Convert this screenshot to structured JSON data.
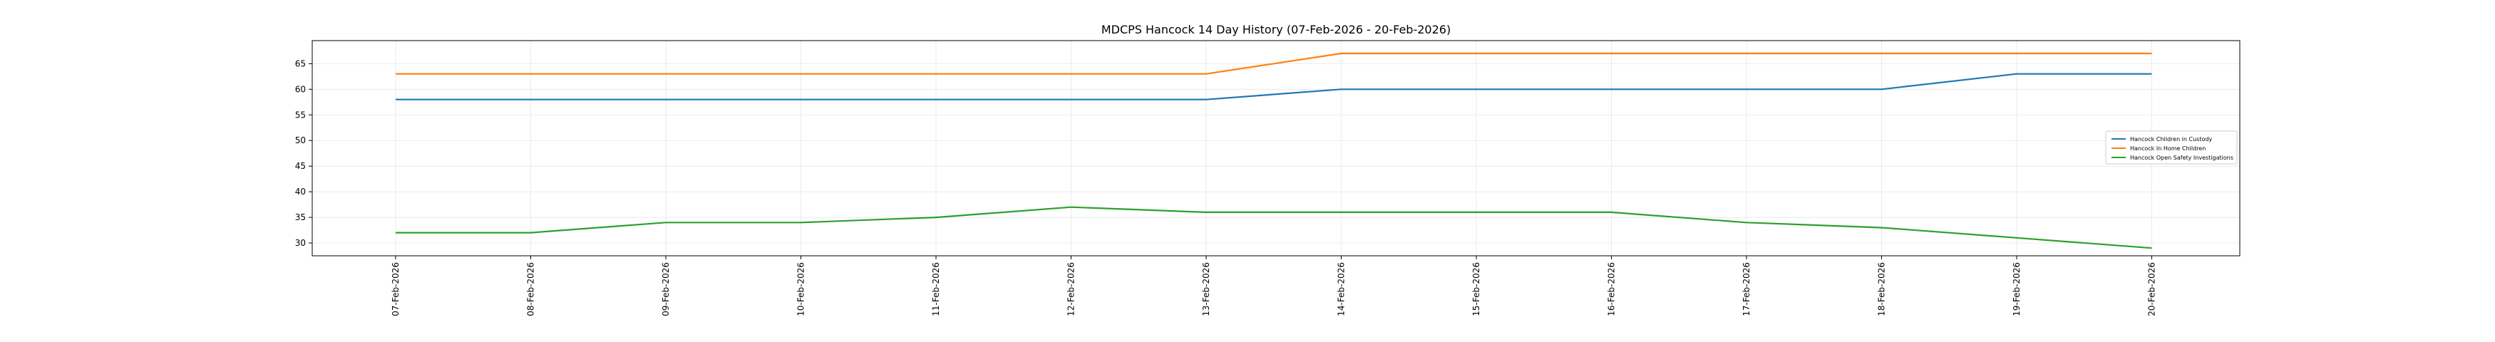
{
  "chart_data": {
    "type": "line",
    "title": "MDCPS Hancock 14 Day History (07-Feb-2026 - 20-Feb-2026)",
    "xlabel": "",
    "ylabel": "",
    "categories": [
      "07-Feb-2026",
      "08-Feb-2026",
      "09-Feb-2026",
      "10-Feb-2026",
      "11-Feb-2026",
      "12-Feb-2026",
      "13-Feb-2026",
      "14-Feb-2026",
      "15-Feb-2026",
      "16-Feb-2026",
      "17-Feb-2026",
      "18-Feb-2026",
      "19-Feb-2026",
      "20-Feb-2026"
    ],
    "ylim": [
      27.5,
      69.5
    ],
    "yticks": [
      30,
      35,
      40,
      45,
      50,
      55,
      60,
      65
    ],
    "grid": true,
    "legend_position": "center-right",
    "series": [
      {
        "name": "Hancock Children in Custody",
        "color": "#1f77b4",
        "values": [
          58,
          58,
          58,
          58,
          58,
          58,
          58,
          60,
          60,
          60,
          60,
          60,
          63,
          63
        ]
      },
      {
        "name": "Hancock In Home Children",
        "color": "#ff7f0e",
        "values": [
          63,
          63,
          63,
          63,
          63,
          63,
          63,
          67,
          67,
          67,
          67,
          67,
          67,
          67
        ]
      },
      {
        "name": "Hancock Open Safety Investigations",
        "color": "#2ca02c",
        "values": [
          32,
          32,
          34,
          34,
          35,
          37,
          36,
          36,
          36,
          36,
          34,
          33,
          31,
          29
        ]
      }
    ]
  }
}
